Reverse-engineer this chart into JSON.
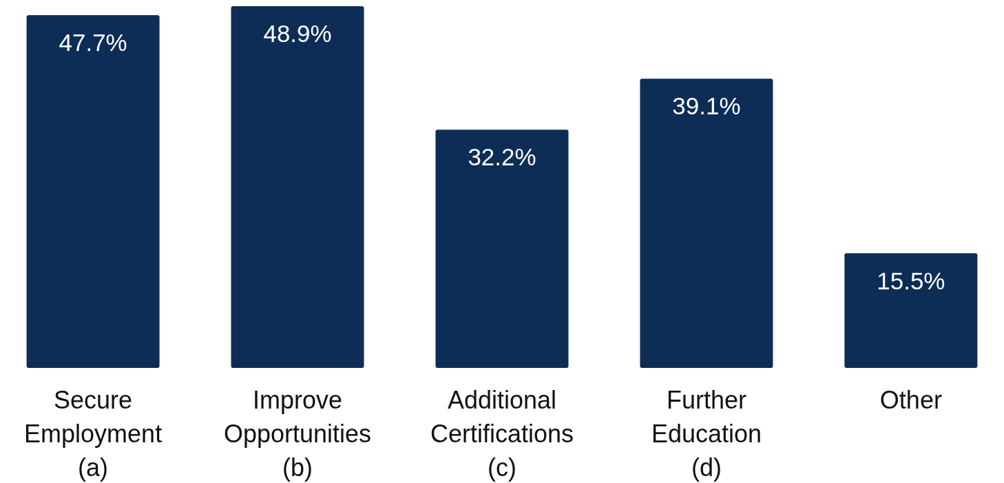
{
  "chart_data": {
    "type": "bar",
    "categories": [
      "Secure\nEmployment\n(a)",
      "Improve\nOpportunities\n(b)",
      "Additional\nCertifications\n(c)",
      "Further\nEducation\n(d)",
      "Other"
    ],
    "values": [
      47.7,
      48.9,
      32.2,
      39.1,
      15.5
    ],
    "value_labels": [
      "47.7%",
      "48.9%",
      "32.2%",
      "39.1%",
      "15.5%"
    ],
    "color": "#0d2d57",
    "grid": false
  }
}
